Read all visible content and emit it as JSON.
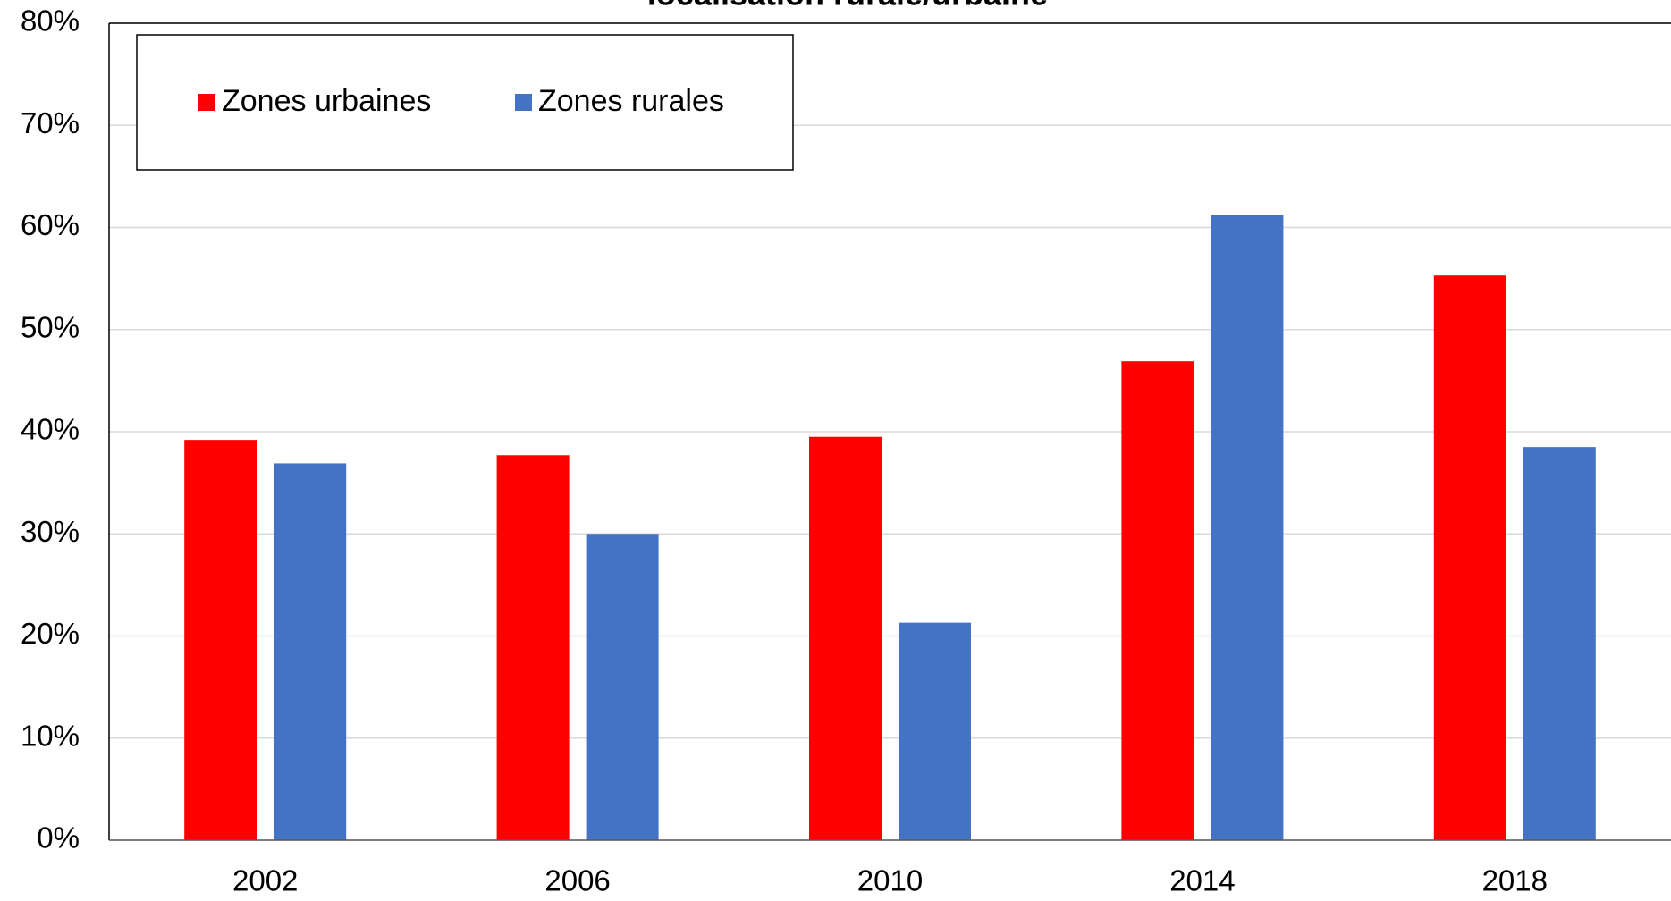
{
  "chart_data": {
    "type": "bar",
    "title": "localisation rurale/urbaine",
    "categories": [
      "2002",
      "2006",
      "2010",
      "2014",
      "2018"
    ],
    "series": [
      {
        "name": "Zones urbaines",
        "color": "#ff0000",
        "values": [
          39.2,
          37.7,
          39.5,
          46.9,
          55.3
        ]
      },
      {
        "name": "Zones rurales",
        "color": "#4472c4",
        "values": [
          36.9,
          30.0,
          21.3,
          61.2,
          38.5
        ]
      }
    ],
    "ylim": [
      0,
      80
    ],
    "yticks": [
      {
        "value": 0,
        "label": "0%"
      },
      {
        "value": 10,
        "label": "10%"
      },
      {
        "value": 20,
        "label": "20%"
      },
      {
        "value": 30,
        "label": "30%"
      },
      {
        "value": 40,
        "label": "40%"
      },
      {
        "value": 50,
        "label": "50%"
      },
      {
        "value": 60,
        "label": "60%"
      },
      {
        "value": 70,
        "label": "70%"
      },
      {
        "value": 80,
        "label": "80%"
      }
    ],
    "grid": true,
    "legend": "top-left"
  }
}
